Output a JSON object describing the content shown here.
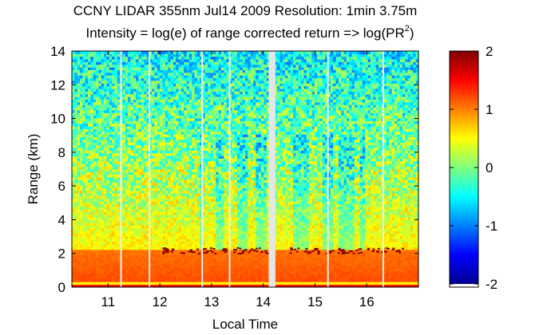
{
  "chart_data": {
    "type": "heatmap",
    "title": "CCNY LIDAR 355nm Jul14 2009 Resolution: 1min 3.75m",
    "subtitle_prefix": "Intensity = log(e) of range corrected return => log(PR",
    "subtitle_sup": "2",
    "subtitle_suffix": ")",
    "xlabel": "Local Time",
    "ylabel": "Range (km)",
    "xlim": [
      10.3,
      17.0
    ],
    "ylim": [
      0,
      14
    ],
    "xticks": [
      11,
      12,
      13,
      14,
      15,
      16
    ],
    "yticks": [
      0,
      2,
      4,
      6,
      8,
      10,
      12,
      14
    ],
    "colorbar": {
      "clim": [
        -2,
        2
      ],
      "ticks": [
        -2,
        -1,
        0,
        1,
        2
      ],
      "colormap": "jet"
    },
    "boundary_layer_top_km": 2.2,
    "data_gaps": [
      {
        "x": 11.25,
        "width": 0.03
      },
      {
        "x": 11.8,
        "width": 0.03
      },
      {
        "x": 12.82,
        "width": 0.03
      },
      {
        "x": 13.35,
        "width": 0.03
      },
      {
        "x": 14.17,
        "width": 0.13
      },
      {
        "x": 15.25,
        "width": 0.03
      },
      {
        "x": 16.32,
        "width": 0.03
      }
    ]
  }
}
